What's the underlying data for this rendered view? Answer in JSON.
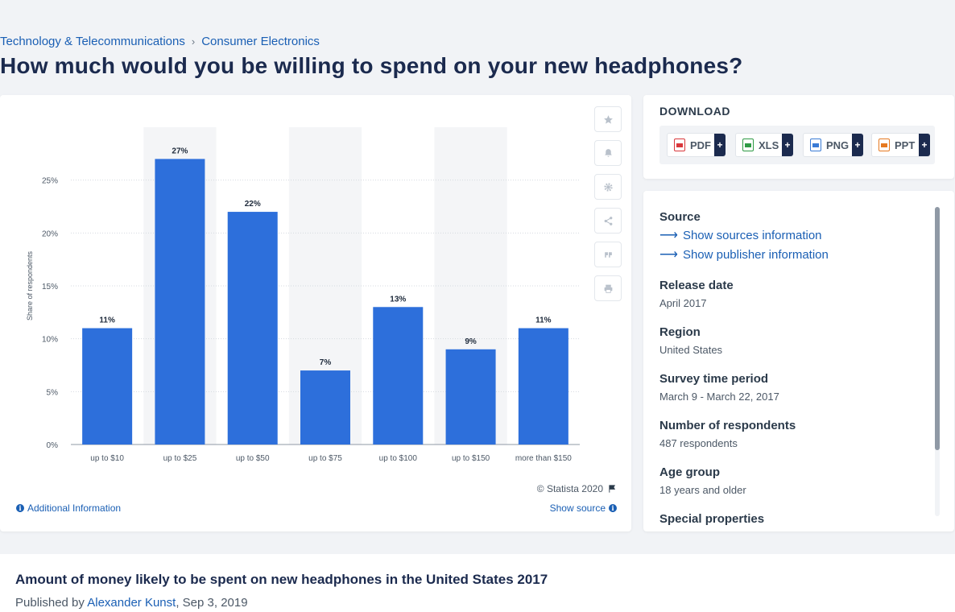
{
  "breadcrumb": {
    "items": [
      "Technology & Telecommunications",
      "Consumer Electronics"
    ],
    "separator": "›"
  },
  "page_title": "How much would you be willing to spend on your new headphones?",
  "chart_data": {
    "type": "bar",
    "categories": [
      "up to $10",
      "up to $25",
      "up to $50",
      "up to $75",
      "up to $100",
      "up to $150",
      "more than $150"
    ],
    "values": [
      11,
      27,
      22,
      7,
      13,
      9,
      11
    ],
    "value_labels": [
      "11%",
      "27%",
      "22%",
      "7%",
      "13%",
      "9%",
      "11%"
    ],
    "ylabel": "Share of respondents",
    "yticks": [
      "0%",
      "5%",
      "10%",
      "15%",
      "20%",
      "25%"
    ],
    "ylim": [
      0,
      30
    ],
    "grid": true,
    "bar_color": "#2d6fdb",
    "alt_band_color": "#f4f5f7"
  },
  "toolbar": {
    "icons": [
      "star-icon",
      "bell-icon",
      "gear-icon",
      "share-icon",
      "quote-icon",
      "print-icon"
    ]
  },
  "credit": "© Statista 2020",
  "additional_info": "Additional Information",
  "show_source": "Show source",
  "download": {
    "title": "DOWNLOAD",
    "buttons": [
      {
        "label": "PDF",
        "color": "#d9373b"
      },
      {
        "label": "XLS",
        "color": "#2e9a44"
      },
      {
        "label": "PNG",
        "color": "#3a7bd5"
      },
      {
        "label": "PPT",
        "color": "#e67a22"
      }
    ],
    "plus": "+"
  },
  "source": {
    "source_label": "Source",
    "show_sources": "Show sources information",
    "show_publisher": "Show publisher information",
    "release_label": "Release date",
    "release_value": "April 2017",
    "region_label": "Region",
    "region_value": "United States",
    "survey_label": "Survey time period",
    "survey_value": "March 9 - March 22, 2017",
    "respondents_label": "Number of respondents",
    "respondents_value": "487 respondents",
    "age_label": "Age group",
    "age_value": "18 years and older",
    "special_label": "Special properties"
  },
  "bottom": {
    "title": "Amount of money likely to be spent on new headphones in the United States 2017",
    "published_prefix": "Published by",
    "author": "Alexander Kunst",
    "date": ", Sep 3, 2019"
  }
}
